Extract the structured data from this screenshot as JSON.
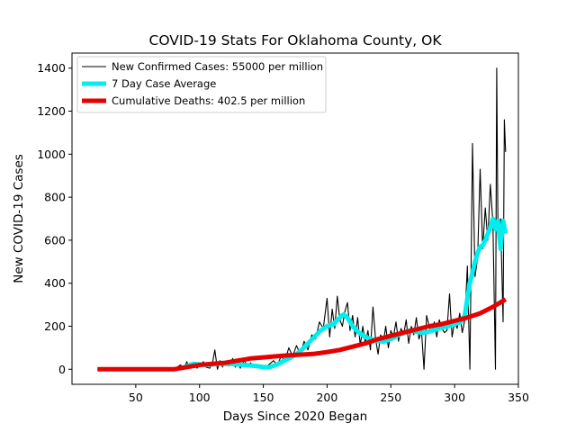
{
  "chart_data": {
    "type": "line",
    "title": "COVID-19 Stats For Oklahoma County, OK",
    "xlabel": "Days Since 2020 Began",
    "ylabel": "New COVID-19 Cases",
    "xlim": [
      0,
      350
    ],
    "ylim": [
      -70,
      1470
    ],
    "xticks": [
      50,
      100,
      150,
      200,
      250,
      300,
      350
    ],
    "yticks": [
      0,
      200,
      400,
      600,
      800,
      1000,
      1200,
      1400
    ],
    "legend_position": "top-left",
    "series": [
      {
        "name": "New Confirmed Cases: 55000 per million",
        "color": "#000000",
        "style": "thin",
        "points": [
          [
            20,
            0
          ],
          [
            40,
            0
          ],
          [
            60,
            0
          ],
          [
            80,
            0
          ],
          [
            85,
            20
          ],
          [
            88,
            5
          ],
          [
            90,
            35
          ],
          [
            92,
            10
          ],
          [
            95,
            30
          ],
          [
            98,
            5
          ],
          [
            100,
            20
          ],
          [
            103,
            35
          ],
          [
            105,
            10
          ],
          [
            108,
            5
          ],
          [
            110,
            25
          ],
          [
            112,
            90
          ],
          [
            114,
            0
          ],
          [
            116,
            40
          ],
          [
            118,
            10
          ],
          [
            120,
            30
          ],
          [
            123,
            15
          ],
          [
            126,
            50
          ],
          [
            128,
            10
          ],
          [
            130,
            30
          ],
          [
            132,
            5
          ],
          [
            135,
            40
          ],
          [
            138,
            15
          ],
          [
            140,
            30
          ],
          [
            143,
            10
          ],
          [
            146,
            20
          ],
          [
            149,
            5
          ],
          [
            152,
            10
          ],
          [
            155,
            25
          ],
          [
            158,
            40
          ],
          [
            161,
            20
          ],
          [
            164,
            60
          ],
          [
            167,
            40
          ],
          [
            170,
            100
          ],
          [
            173,
            60
          ],
          [
            176,
            110
          ],
          [
            179,
            70
          ],
          [
            182,
            130
          ],
          [
            185,
            90
          ],
          [
            188,
            160
          ],
          [
            191,
            140
          ],
          [
            194,
            220
          ],
          [
            197,
            190
          ],
          [
            200,
            330
          ],
          [
            202,
            150
          ],
          [
            204,
            280
          ],
          [
            206,
            190
          ],
          [
            208,
            340
          ],
          [
            210,
            230
          ],
          [
            212,
            200
          ],
          [
            214,
            270
          ],
          [
            216,
            310
          ],
          [
            218,
            180
          ],
          [
            220,
            250
          ],
          [
            222,
            150
          ],
          [
            224,
            240
          ],
          [
            226,
            110
          ],
          [
            228,
            200
          ],
          [
            230,
            120
          ],
          [
            232,
            180
          ],
          [
            234,
            90
          ],
          [
            236,
            290
          ],
          [
            238,
            140
          ],
          [
            240,
            70
          ],
          [
            242,
            160
          ],
          [
            244,
            120
          ],
          [
            246,
            200
          ],
          [
            248,
            100
          ],
          [
            250,
            180
          ],
          [
            252,
            150
          ],
          [
            254,
            220
          ],
          [
            256,
            130
          ],
          [
            258,
            190
          ],
          [
            260,
            160
          ],
          [
            262,
            230
          ],
          [
            264,
            120
          ],
          [
            266,
            200
          ],
          [
            268,
            160
          ],
          [
            270,
            240
          ],
          [
            272,
            140
          ],
          [
            274,
            180
          ],
          [
            276,
            0
          ],
          [
            278,
            250
          ],
          [
            280,
            200
          ],
          [
            282,
            170
          ],
          [
            284,
            220
          ],
          [
            286,
            150
          ],
          [
            288,
            230
          ],
          [
            290,
            190
          ],
          [
            292,
            170
          ],
          [
            294,
            180
          ],
          [
            296,
            350
          ],
          [
            298,
            150
          ],
          [
            300,
            220
          ],
          [
            302,
            190
          ],
          [
            304,
            260
          ],
          [
            306,
            170
          ],
          [
            308,
            230
          ],
          [
            310,
            480
          ],
          [
            312,
            0
          ],
          [
            314,
            1050
          ],
          [
            316,
            430
          ],
          [
            318,
            520
          ],
          [
            320,
            930
          ],
          [
            322,
            560
          ],
          [
            324,
            750
          ],
          [
            326,
            600
          ],
          [
            328,
            860
          ],
          [
            330,
            680
          ],
          [
            332,
            0
          ],
          [
            333,
            1400
          ],
          [
            334,
            640
          ],
          [
            336,
            700
          ],
          [
            338,
            220
          ],
          [
            339,
            1160
          ],
          [
            340,
            1010
          ]
        ]
      },
      {
        "name": "7 Day Case Average",
        "color": "#00eeee",
        "style": "thick",
        "points": [
          [
            88,
            10
          ],
          [
            95,
            25
          ],
          [
            105,
            20
          ],
          [
            115,
            25
          ],
          [
            125,
            25
          ],
          [
            135,
            20
          ],
          [
            145,
            15
          ],
          [
            150,
            10
          ],
          [
            155,
            10
          ],
          [
            160,
            20
          ],
          [
            165,
            35
          ],
          [
            170,
            50
          ],
          [
            175,
            65
          ],
          [
            180,
            90
          ],
          [
            185,
            120
          ],
          [
            190,
            150
          ],
          [
            195,
            180
          ],
          [
            200,
            200
          ],
          [
            205,
            210
          ],
          [
            210,
            240
          ],
          [
            213,
            255
          ],
          [
            216,
            240
          ],
          [
            220,
            200
          ],
          [
            225,
            170
          ],
          [
            230,
            150
          ],
          [
            235,
            140
          ],
          [
            240,
            130
          ],
          [
            245,
            130
          ],
          [
            250,
            140
          ],
          [
            255,
            155
          ],
          [
            260,
            170
          ],
          [
            265,
            180
          ],
          [
            270,
            175
          ],
          [
            275,
            170
          ],
          [
            280,
            175
          ],
          [
            285,
            185
          ],
          [
            290,
            195
          ],
          [
            295,
            200
          ],
          [
            300,
            210
          ],
          [
            305,
            220
          ],
          [
            308,
            250
          ],
          [
            310,
            330
          ],
          [
            312,
            400
          ],
          [
            314,
            450
          ],
          [
            316,
            500
          ],
          [
            318,
            540
          ],
          [
            320,
            570
          ],
          [
            322,
            575
          ],
          [
            324,
            600
          ],
          [
            326,
            630
          ],
          [
            328,
            660
          ],
          [
            330,
            700
          ],
          [
            332,
            650
          ],
          [
            334,
            690
          ],
          [
            336,
            560
          ],
          [
            338,
            690
          ],
          [
            340,
            630
          ]
        ]
      },
      {
        "name": "Cumulative Deaths: 402.5 per million",
        "color": "#e60000",
        "style": "thick",
        "points": [
          [
            20,
            0
          ],
          [
            60,
            0
          ],
          [
            80,
            0
          ],
          [
            90,
            10
          ],
          [
            100,
            20
          ],
          [
            110,
            25
          ],
          [
            120,
            30
          ],
          [
            130,
            40
          ],
          [
            140,
            50
          ],
          [
            150,
            55
          ],
          [
            160,
            60
          ],
          [
            170,
            65
          ],
          [
            180,
            68
          ],
          [
            190,
            72
          ],
          [
            200,
            80
          ],
          [
            210,
            90
          ],
          [
            220,
            105
          ],
          [
            230,
            120
          ],
          [
            240,
            140
          ],
          [
            250,
            155
          ],
          [
            260,
            170
          ],
          [
            270,
            185
          ],
          [
            280,
            200
          ],
          [
            290,
            210
          ],
          [
            300,
            225
          ],
          [
            310,
            240
          ],
          [
            320,
            260
          ],
          [
            330,
            290
          ],
          [
            340,
            325
          ]
        ]
      }
    ]
  }
}
